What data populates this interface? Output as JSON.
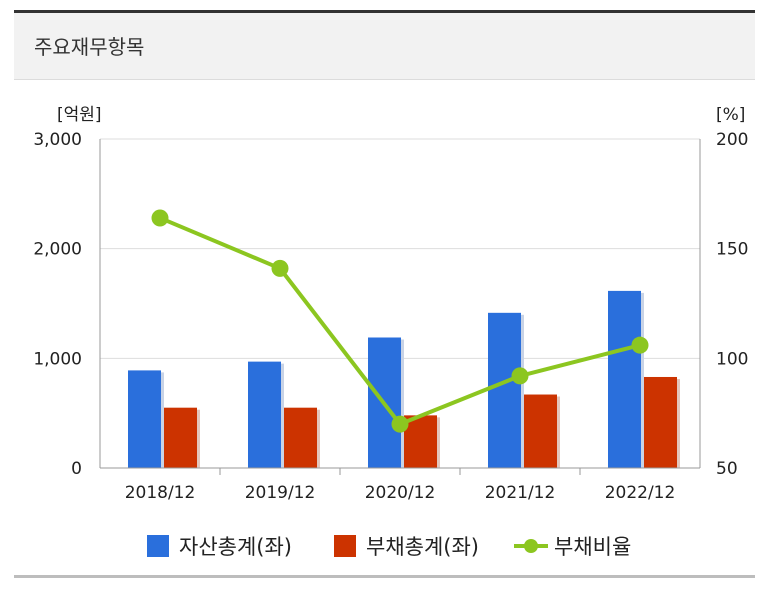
{
  "header": {
    "title": "주요재무항목"
  },
  "colors": {
    "asset": "#2a6fdc",
    "liability": "#cc3300",
    "ratio": "#8cc620",
    "grid": "#dddddd",
    "axis": "#999999"
  },
  "chart_data": {
    "type": "bar",
    "title": "주요재무항목",
    "categories": [
      "2018/12",
      "2019/12",
      "2020/12",
      "2021/12",
      "2022/12"
    ],
    "series": [
      {
        "name": "자산총계(좌)",
        "type": "bar",
        "axis": "left",
        "values": [
          890,
          970,
          1190,
          1415,
          1615
        ]
      },
      {
        "name": "부채총계(좌)",
        "type": "bar",
        "axis": "left",
        "values": [
          550,
          550,
          480,
          670,
          830
        ]
      },
      {
        "name": "부채비율",
        "type": "line",
        "axis": "right",
        "values": [
          164,
          141,
          70,
          92,
          106
        ]
      }
    ],
    "y_left": {
      "unit": "[억원]",
      "range": [
        0,
        3000
      ],
      "ticks": [
        0,
        1000,
        2000,
        3000
      ],
      "tick_labels": [
        "0",
        "1,000",
        "2,000",
        "3,000"
      ]
    },
    "y_right": {
      "unit": "[%]",
      "range": [
        50,
        200
      ],
      "ticks": [
        50,
        100,
        150,
        200
      ],
      "tick_labels": [
        "50",
        "100",
        "150",
        "200"
      ]
    },
    "grid": true,
    "legend": "bottom"
  }
}
